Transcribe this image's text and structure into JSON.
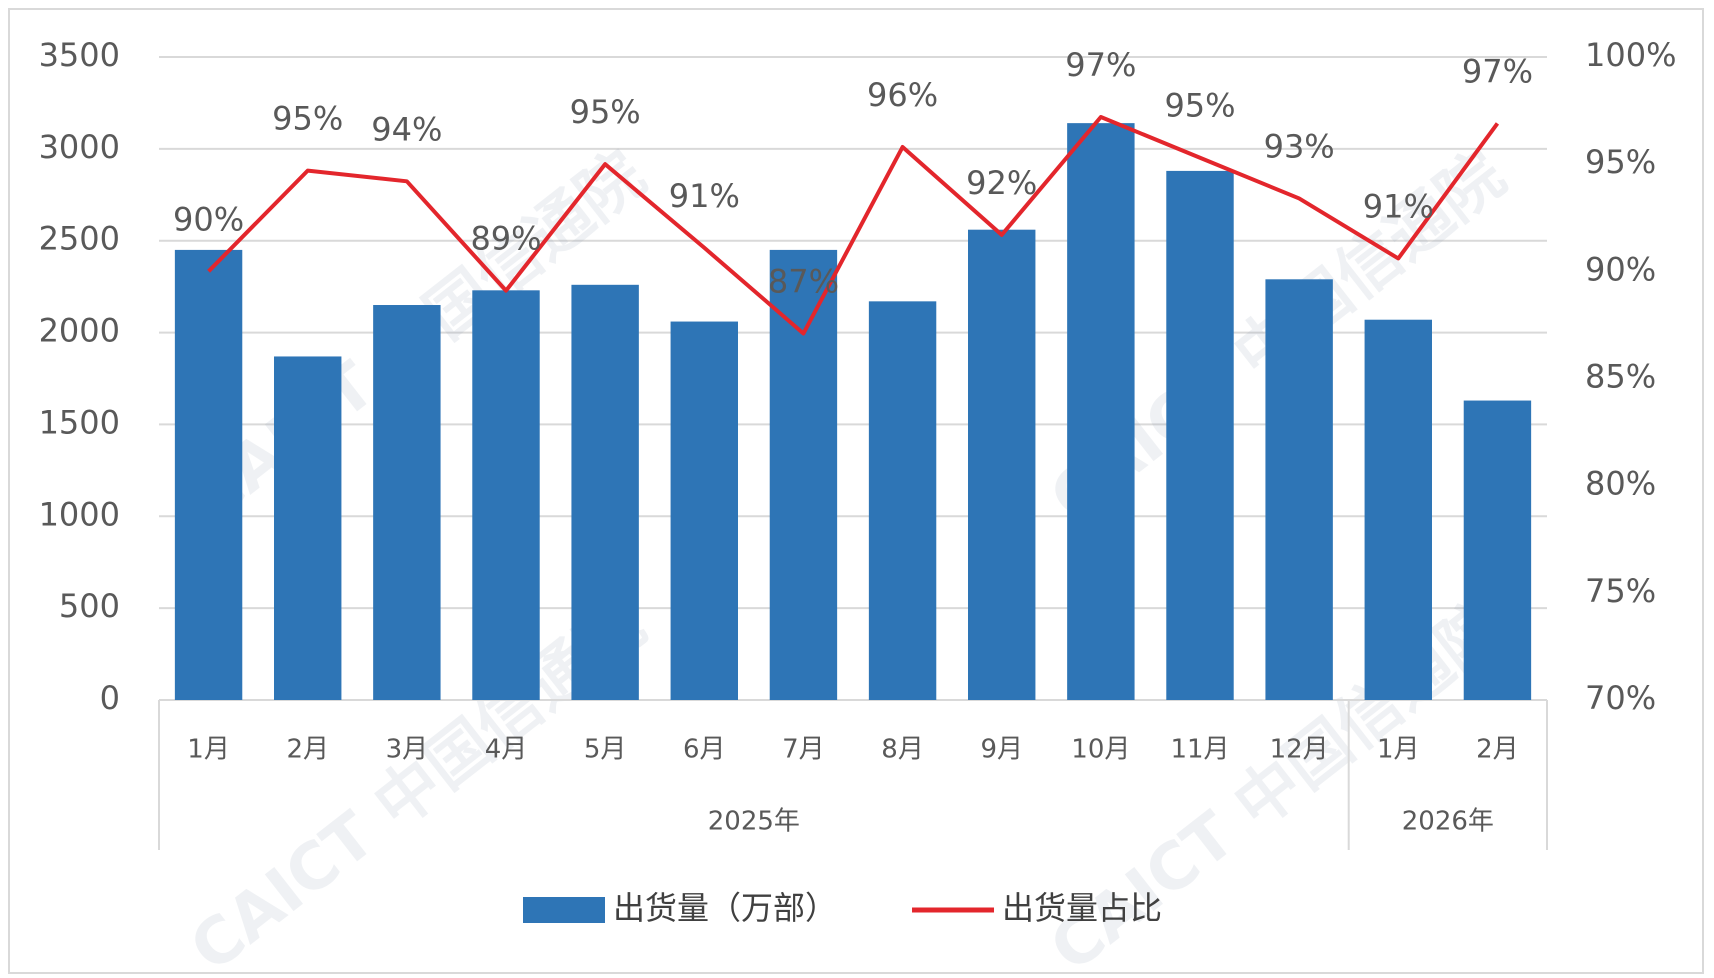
{
  "chart_data": {
    "type": "bar-line",
    "categories": [
      "1月",
      "2月",
      "3月",
      "4月",
      "5月",
      "6月",
      "7月",
      "8月",
      "9月",
      "10月",
      "11月",
      "12月",
      "1月",
      "2月"
    ],
    "groups": [
      {
        "label": "2025年",
        "span": 12
      },
      {
        "label": "2026年",
        "span": 2
      }
    ],
    "series": [
      {
        "name": "出货量（万部）",
        "type": "bar",
        "color": "#2e75b6",
        "values": [
          2450,
          1870,
          2150,
          2230,
          2260,
          2060,
          2450,
          2170,
          2560,
          3140,
          2880,
          2290,
          2070,
          1630
        ]
      },
      {
        "name": "出货量占比",
        "type": "line",
        "axis": "y2",
        "color": "#e3262c",
        "values": [
          90.0,
          94.7,
          94.2,
          89.1,
          95.0,
          91.1,
          87.1,
          95.8,
          91.7,
          97.2,
          95.3,
          93.4,
          90.6,
          96.9
        ],
        "value_labels": [
          "90%",
          "95%",
          "94%",
          "89%",
          "95%",
          "91%",
          "87%",
          "96%",
          "92%",
          "97%",
          "95%",
          "93%",
          "91%",
          "97%"
        ]
      }
    ],
    "ylim": [
      0,
      3500
    ],
    "yticks": [
      0,
      500,
      1000,
      1500,
      2000,
      2500,
      3000,
      3500
    ],
    "y2lim": [
      70,
      100
    ],
    "y2ticks": [
      {
        "value": 70,
        "label": "70%"
      },
      {
        "value": 75,
        "label": "75%"
      },
      {
        "value": 80,
        "label": "80%"
      },
      {
        "value": 85,
        "label": "85%"
      },
      {
        "value": 90,
        "label": "90%"
      },
      {
        "value": 95,
        "label": "95%"
      },
      {
        "value": 100,
        "label": "100%"
      }
    ],
    "grid": true,
    "legend": "bottom",
    "watermark": "CAICT 中国信通院"
  }
}
